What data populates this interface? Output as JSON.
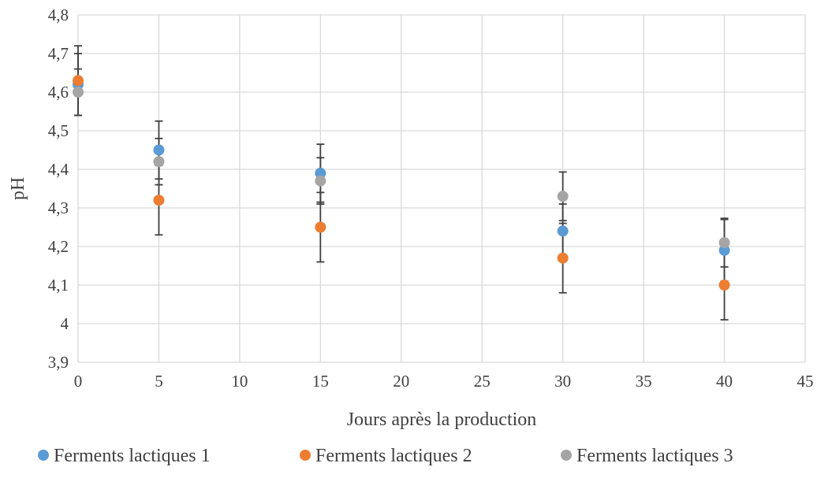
{
  "chart_data": {
    "type": "scatter",
    "title": "",
    "xlabel": "Jours après la production",
    "ylabel": "pH",
    "xlim": [
      0,
      45
    ],
    "ylim": [
      3.9,
      4.8
    ],
    "x_ticks": [
      "0",
      "5",
      "10",
      "15",
      "20",
      "25",
      "30",
      "35",
      "40",
      "45"
    ],
    "y_ticks": [
      "3,9",
      "4",
      "4,1",
      "4,2",
      "4,3",
      "4,4",
      "4,5",
      "4,6",
      "4,7",
      "4,8"
    ],
    "x_tick_values": [
      0,
      5,
      10,
      15,
      20,
      25,
      30,
      35,
      40,
      45
    ],
    "y_tick_values": [
      3.9,
      4.0,
      4.1,
      4.2,
      4.3,
      4.4,
      4.5,
      4.6,
      4.7,
      4.8
    ],
    "grid": true,
    "legend_position": "bottom",
    "error_bar_color": "#404040",
    "series": [
      {
        "name": "Ferments lactiques 1",
        "color": "#5b9bd5",
        "x": [
          0,
          5,
          15,
          30,
          40
        ],
        "y": [
          4.62,
          4.45,
          4.39,
          4.24,
          4.19
        ],
        "err": [
          0.08,
          0.075,
          0.075,
          0.07,
          0.08
        ]
      },
      {
        "name": "Ferments lactiques 2",
        "color": "#ed7d31",
        "x": [
          0,
          5,
          15,
          30,
          40
        ],
        "y": [
          4.63,
          4.32,
          4.25,
          4.17,
          4.1
        ],
        "err": [
          0.09,
          0.09,
          0.09,
          0.09,
          0.09
        ]
      },
      {
        "name": "Ferments lactiques 3",
        "color": "#a5a5a5",
        "x": [
          0,
          5,
          15,
          30,
          40
        ],
        "y": [
          4.6,
          4.42,
          4.37,
          4.33,
          4.21
        ],
        "err": [
          0.06,
          0.06,
          0.06,
          0.063,
          0.063
        ]
      }
    ]
  }
}
